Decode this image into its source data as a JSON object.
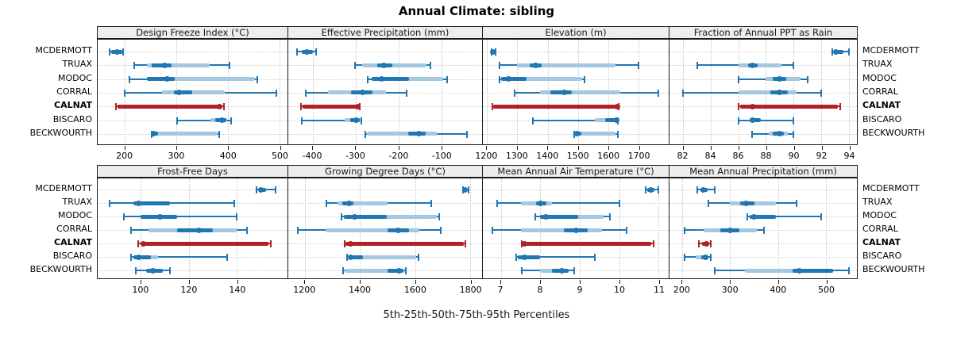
{
  "title": "Annual Climate: sibling",
  "caption": "5th-25th-50th-75th-95th Percentiles",
  "colors": {
    "series": "#1f77b4",
    "series_band": "#a4c8e1",
    "highlight": "#b02126",
    "highlight_band": "#c0393d",
    "grid": "#c6c6c6",
    "border": "#1a1a1a",
    "strip_bg": "#ededed"
  },
  "stations": [
    "MCDERMOTT",
    "TRUAX",
    "MODOC",
    "CORRAL",
    "CALNAT",
    "BISCARO",
    "BECKWOURTH"
  ],
  "highlight_station": "CALNAT",
  "chart_data": {
    "type": "dot-interval",
    "title": "Annual Climate: sibling",
    "caption": "5th-25th-50th-75th-95th Percentiles",
    "percentile_labels": [
      "5th",
      "25th",
      "50th",
      "75th",
      "95th"
    ],
    "layout": {
      "nrows": 2,
      "ncols": 4,
      "grid": "dotted"
    },
    "stations": [
      "MCDERMOTT",
      "TRUAX",
      "MODOC",
      "CORRAL",
      "CALNAT",
      "BISCARO",
      "BECKWOURTH"
    ],
    "panels": [
      {
        "title": "Design Freeze Index (°C)",
        "row": 0,
        "col": 0,
        "xlim": [
          147,
          516
        ],
        "ticks": [
          200,
          300,
          400,
          500
        ],
        "values": [
          [
            170,
            174,
            185,
            195,
            196
          ],
          [
            218,
            242,
            278,
            364,
            403
          ],
          [
            209,
            243,
            282,
            452,
            457
          ],
          [
            199,
            272,
            306,
            394,
            494
          ],
          [
            182,
            185,
            384,
            385,
            393
          ],
          [
            302,
            366,
            388,
            399,
            406
          ],
          [
            252,
            254,
            256,
            380,
            383
          ]
        ],
        "inner": [
          [
            174,
            195
          ],
          [
            252,
            290
          ],
          [
            243,
            297
          ],
          [
            295,
            330
          ],
          [
            185,
            384
          ],
          [
            375,
            397
          ],
          [
            254,
            264
          ]
        ]
      },
      {
        "title": "Effective Precipitation (mm)",
        "row": 0,
        "col": 1,
        "xlim": [
          -457,
          -5
        ],
        "ticks": [
          -400,
          -300,
          -200,
          -100
        ],
        "values": [
          [
            -437,
            -425,
            -414,
            -400,
            -392
          ],
          [
            -301,
            -285,
            -234,
            -135,
            -125
          ],
          [
            -271,
            -262,
            -240,
            -95,
            -86
          ],
          [
            -417,
            -365,
            -283,
            -230,
            -181
          ],
          [
            -427,
            -424,
            -295,
            -294,
            -290
          ],
          [
            -425,
            -325,
            -298,
            -289,
            -286
          ],
          [
            -278,
            -273,
            -152,
            -110,
            -40
          ]
        ],
        "inner": [
          [
            -425,
            -400
          ],
          [
            -250,
            -215
          ],
          [
            -262,
            -176
          ],
          [
            -310,
            -260
          ],
          [
            -424,
            -295
          ],
          [
            -312,
            -290
          ],
          [
            -178,
            -137
          ]
        ]
      },
      {
        "title": "Elevation (m)",
        "row": 0,
        "col": 2,
        "xlim": [
          1186,
          1800
        ],
        "ticks": [
          1200,
          1300,
          1400,
          1500,
          1600,
          1700
        ],
        "values": [
          [
            1215,
            1217,
            1220,
            1224,
            1228
          ],
          [
            1240,
            1300,
            1360,
            1625,
            1700
          ],
          [
            1240,
            1246,
            1272,
            1515,
            1522
          ],
          [
            1290,
            1375,
            1455,
            1640,
            1765
          ],
          [
            1218,
            1221,
            1630,
            1632,
            1636
          ],
          [
            1350,
            1555,
            1628,
            1630,
            1633
          ],
          [
            1488,
            1492,
            1497,
            1625,
            1632
          ]
        ],
        "inner": [
          [
            1217,
            1224
          ],
          [
            1340,
            1380
          ],
          [
            1246,
            1330
          ],
          [
            1410,
            1480
          ],
          [
            1221,
            1630
          ],
          [
            1590,
            1629
          ],
          [
            1492,
            1512
          ]
        ]
      },
      {
        "title": "Fraction of Annual PPT as Rain",
        "row": 0,
        "col": 3,
        "xlim": [
          81,
          94.6
        ],
        "ticks": [
          82,
          84,
          86,
          88,
          90,
          92,
          94
        ],
        "values": [
          [
            92.8,
            92.9,
            93.1,
            93.6,
            94
          ],
          [
            83,
            86,
            87,
            89.1,
            90
          ],
          [
            86,
            88,
            89,
            90.5,
            91
          ],
          [
            82,
            86,
            89,
            90.2,
            92
          ],
          [
            86,
            86.1,
            87,
            93.2,
            93.4
          ],
          [
            86,
            86.8,
            87,
            87.6,
            90
          ],
          [
            87,
            88.2,
            89,
            89.6,
            90
          ]
        ],
        "inner": [
          [
            92.9,
            93.6
          ],
          [
            86.7,
            87.4
          ],
          [
            88.5,
            89.5
          ],
          [
            88.3,
            89.6
          ],
          [
            86.1,
            93.2
          ],
          [
            86.8,
            87.6
          ],
          [
            88.5,
            89.3
          ]
        ]
      },
      {
        "title": "Frost-Free Days",
        "row": 1,
        "col": 0,
        "xlim": [
          82,
          161
        ],
        "ticks": [
          100,
          120,
          140
        ],
        "values": [
          [
            148,
            149,
            150,
            152,
            156
          ],
          [
            87,
            97,
            99,
            112,
            139
          ],
          [
            93,
            100,
            108,
            115,
            140
          ],
          [
            96,
            103,
            124,
            140,
            144
          ],
          [
            99,
            100,
            101,
            153,
            154
          ],
          [
            96,
            97,
            99,
            107,
            136
          ],
          [
            98,
            102,
            105,
            109,
            112
          ]
        ],
        "inner": [
          [
            149,
            152
          ],
          [
            97,
            112
          ],
          [
            100,
            115
          ],
          [
            115,
            130
          ],
          [
            100,
            153
          ],
          [
            97,
            104
          ],
          [
            102,
            109
          ]
        ]
      },
      {
        "title": "Growing Degree Days (°C)",
        "row": 1,
        "col": 1,
        "xlim": [
          1139,
          1844
        ],
        "ticks": [
          1200,
          1400,
          1600,
          1800
        ],
        "values": [
          [
            1774,
            1778,
            1783,
            1790,
            1796
          ],
          [
            1279,
            1318,
            1359,
            1501,
            1659
          ],
          [
            1332,
            1340,
            1379,
            1680,
            1688
          ],
          [
            1173,
            1274,
            1538,
            1617,
            1693
          ],
          [
            1345,
            1348,
            1366,
            1777,
            1782
          ],
          [
            1354,
            1358,
            1366,
            1605,
            1612
          ],
          [
            1339,
            1345,
            1542,
            1560,
            1567
          ]
        ],
        "inner": [
          [
            1778,
            1790
          ],
          [
            1335,
            1375
          ],
          [
            1340,
            1497
          ],
          [
            1501,
            1579
          ],
          [
            1348,
            1777
          ],
          [
            1358,
            1410
          ],
          [
            1501,
            1559
          ]
        ]
      },
      {
        "title": "Mean Annual Air Temperature (°C)",
        "row": 1,
        "col": 2,
        "xlim": [
          6.54,
          11.26
        ],
        "ticks": [
          7,
          8,
          9,
          10,
          11
        ],
        "values": [
          [
            10.67,
            10.72,
            10.8,
            10.9,
            11
          ],
          [
            6.9,
            7.5,
            8,
            8.3,
            10
          ],
          [
            7.88,
            8,
            8.15,
            9.6,
            9.77
          ],
          [
            6.78,
            7.5,
            8.9,
            9.57,
            10.2
          ],
          [
            7.53,
            7.55,
            7.6,
            10.82,
            10.87
          ],
          [
            7.39,
            7.43,
            7.6,
            8,
            9.39
          ],
          [
            7.52,
            8,
            8.55,
            8.72,
            8.85
          ]
        ],
        "inner": [
          [
            10.72,
            10.9
          ],
          [
            7.9,
            8.15
          ],
          [
            8,
            8.97
          ],
          [
            8.6,
            9.2
          ],
          [
            7.55,
            10.82
          ],
          [
            7.43,
            8
          ],
          [
            8.3,
            8.72
          ]
        ]
      },
      {
        "title": "Mean Annual Precipitation (mm)",
        "row": 1,
        "col": 3,
        "xlim": [
          173,
          565
        ],
        "ticks": [
          200,
          300,
          400,
          500
        ],
        "values": [
          [
            231,
            238,
            243,
            252,
            268
          ],
          [
            255,
            300,
            334,
            395,
            438
          ],
          [
            335,
            340,
            350,
            396,
            490
          ],
          [
            205,
            245,
            300,
            356,
            370
          ],
          [
            234,
            241,
            251,
            256,
            259
          ],
          [
            204,
            228,
            248,
            254,
            259
          ],
          [
            268,
            330,
            445,
            515,
            549
          ]
        ],
        "inner": [
          [
            238,
            252
          ],
          [
            320,
            350
          ],
          [
            340,
            396
          ],
          [
            280,
            320
          ],
          [
            241,
            256
          ],
          [
            240,
            254
          ],
          [
            430,
            515
          ]
        ]
      }
    ]
  }
}
